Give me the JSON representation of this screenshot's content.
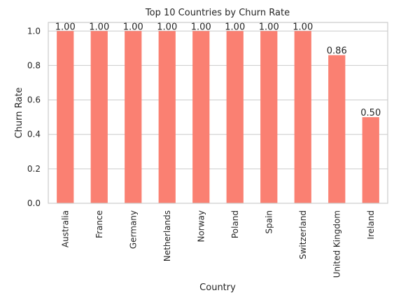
{
  "chart_data": {
    "type": "bar",
    "title": "Top 10 Countries by Churn Rate",
    "xlabel": "Country",
    "ylabel": "Churn Rate",
    "categories": [
      "Australia",
      "France",
      "Germany",
      "Netherlands",
      "Norway",
      "Poland",
      "Spain",
      "Switzerland",
      "United Kingdom",
      "Ireland"
    ],
    "values": [
      1.0,
      1.0,
      1.0,
      1.0,
      1.0,
      1.0,
      1.0,
      1.0,
      0.86,
      0.5
    ],
    "data_labels": [
      "1.00",
      "1.00",
      "1.00",
      "1.00",
      "1.00",
      "1.00",
      "1.00",
      "1.00",
      "0.86",
      "0.50"
    ],
    "yticks": [
      "0.0",
      "0.2",
      "0.4",
      "0.6",
      "0.8",
      "1.0"
    ],
    "ylim": [
      0,
      1.05
    ],
    "grid": "horizontal",
    "bar_color": "#fa8072"
  }
}
